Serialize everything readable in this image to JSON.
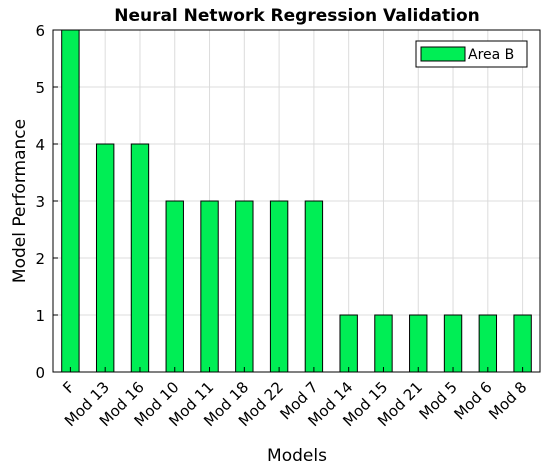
{
  "chart_data": {
    "type": "bar",
    "title": "Neural Network Regression Validation",
    "xlabel": "Models",
    "ylabel": "Model Performance",
    "categories": [
      "F",
      "Mod 13",
      "Mod 16",
      "Mod 10",
      "Mod 11",
      "Mod 18",
      "Mod 22",
      "Mod 7",
      "Mod 14",
      "Mod 15",
      "Mod 21",
      "Mod 5",
      "Mod 6",
      "Mod 8"
    ],
    "series": [
      {
        "name": "Area B",
        "values": [
          6,
          4,
          4,
          3,
          3,
          3,
          3,
          3,
          1,
          1,
          1,
          1,
          1,
          1
        ]
      }
    ],
    "ylim": [
      0,
      6
    ],
    "yticks": [
      0,
      1,
      2,
      3,
      4,
      5,
      6
    ],
    "grid": true,
    "legend_position": "top-right",
    "bar_color": "#00ee55"
  }
}
